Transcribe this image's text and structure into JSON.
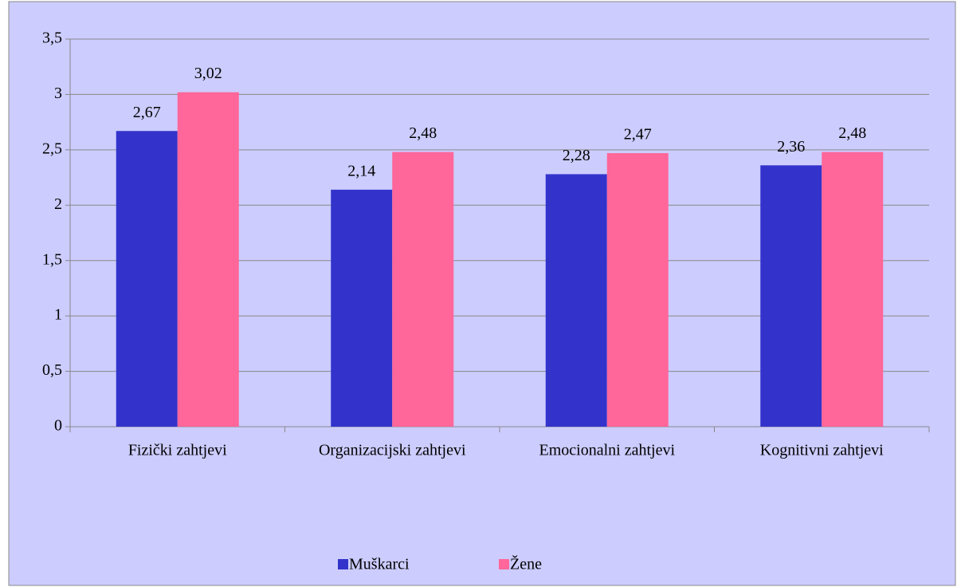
{
  "chart_data": {
    "type": "bar",
    "categories": [
      "Fizički zahtjevi",
      "Organizacijski zahtjevi",
      "Emocionalni zahtjevi",
      "Kognitivni zahtjevi"
    ],
    "series": [
      {
        "name": "Muškarci",
        "color": "#3333cc",
        "values": [
          2.67,
          2.14,
          2.28,
          2.36
        ],
        "value_labels": [
          "2,67",
          "2,14",
          "2,28",
          "2,36"
        ]
      },
      {
        "name": "Žene",
        "color": "#ff6699",
        "values": [
          3.02,
          2.48,
          2.47,
          2.48
        ],
        "value_labels": [
          "3,02",
          "2,48",
          "2,47",
          "2,48"
        ]
      }
    ],
    "ylim": [
      0,
      3.5
    ],
    "yticks": [
      0,
      {
        "value": 0.5,
        "label": "0,5"
      },
      1,
      {
        "value": 1.5,
        "label": "1,5"
      },
      2,
      {
        "value": 2.5,
        "label": "2,5"
      },
      3,
      {
        "value": 3.5,
        "label": "3,5"
      }
    ],
    "grid": true,
    "legend": "bottom"
  }
}
